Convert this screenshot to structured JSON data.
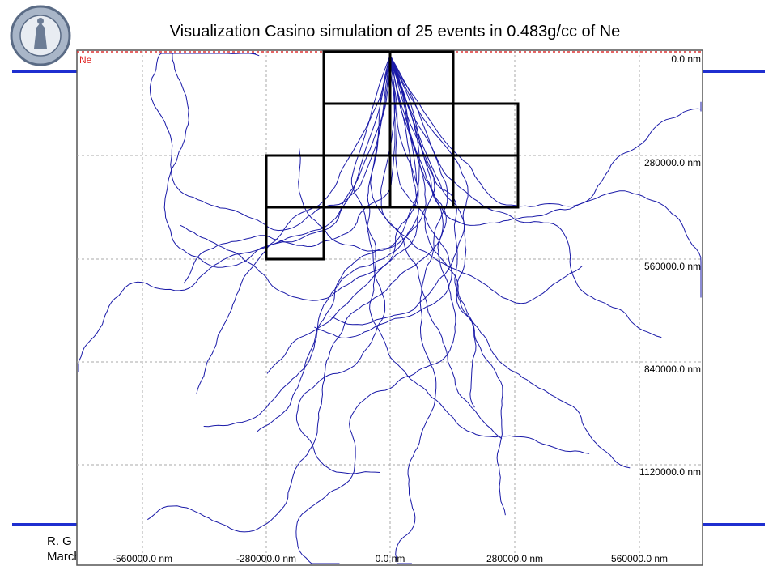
{
  "slide": {
    "title": "Visualization Casino simulation of 25 events in 0.483g/cc of Ne",
    "footer": [
      "R. G",
      "March"
    ],
    "plot": {
      "element_label": "Ne",
      "x_tick_labels": [
        "-560000.0 nm",
        "-280000.0 nm",
        "0.0 nm",
        "280000.0 nm",
        "560000.0 nm"
      ],
      "y_tick_labels": [
        "0.0 nm",
        "280000.0 nm",
        "560000.0 nm",
        "840000.0 nm",
        "1120000.0 nm"
      ]
    }
  }
}
